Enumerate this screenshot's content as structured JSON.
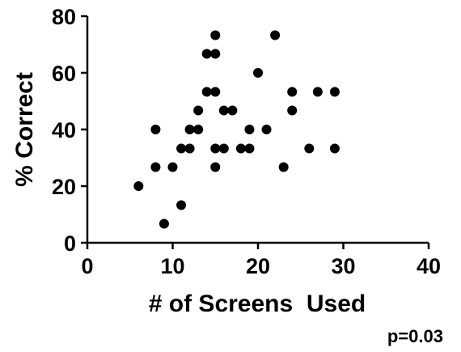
{
  "chart_data": {
    "type": "scatter",
    "xlabel": "# of Screens  Used",
    "ylabel": "% Correct",
    "xlim": [
      0,
      40
    ],
    "ylim": [
      0,
      80
    ],
    "xticks": [
      "0",
      "10",
      "20",
      "30",
      "40"
    ],
    "yticks": [
      "0",
      "20",
      "40",
      "60",
      "80"
    ],
    "grid": false,
    "annotation": "p=0.03",
    "points": [
      {
        "x": 6,
        "y": 20
      },
      {
        "x": 8,
        "y": 40
      },
      {
        "x": 8,
        "y": 26.7
      },
      {
        "x": 9,
        "y": 6.7
      },
      {
        "x": 10,
        "y": 26.7
      },
      {
        "x": 11,
        "y": 33.3
      },
      {
        "x": 11,
        "y": 13.3
      },
      {
        "x": 12,
        "y": 40
      },
      {
        "x": 12,
        "y": 33.3
      },
      {
        "x": 13,
        "y": 46.7
      },
      {
        "x": 13,
        "y": 40
      },
      {
        "x": 14,
        "y": 66.7
      },
      {
        "x": 14,
        "y": 53.3
      },
      {
        "x": 15,
        "y": 73.3
      },
      {
        "x": 15,
        "y": 66.7
      },
      {
        "x": 15,
        "y": 53.3
      },
      {
        "x": 15,
        "y": 33.3
      },
      {
        "x": 15,
        "y": 26.7
      },
      {
        "x": 16,
        "y": 46.7
      },
      {
        "x": 16,
        "y": 33.3
      },
      {
        "x": 17,
        "y": 46.7
      },
      {
        "x": 18,
        "y": 33.3
      },
      {
        "x": 19,
        "y": 40
      },
      {
        "x": 19,
        "y": 33.3
      },
      {
        "x": 20,
        "y": 60
      },
      {
        "x": 21,
        "y": 40
      },
      {
        "x": 22,
        "y": 73.3
      },
      {
        "x": 23,
        "y": 26.7
      },
      {
        "x": 24,
        "y": 53.3
      },
      {
        "x": 24,
        "y": 46.7
      },
      {
        "x": 26,
        "y": 33.3
      },
      {
        "x": 27,
        "y": 53.3
      },
      {
        "x": 29,
        "y": 53.3
      },
      {
        "x": 29,
        "y": 33.3
      }
    ]
  }
}
